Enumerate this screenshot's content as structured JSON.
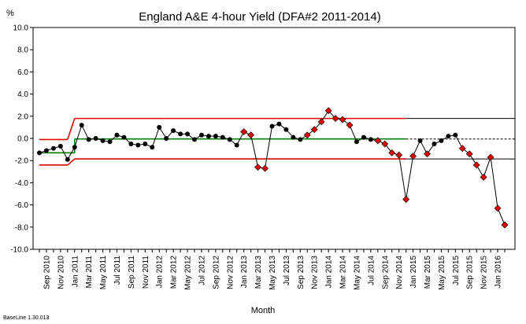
{
  "chart_data": {
    "type": "line",
    "title": "England A&E 4-hour Yield (DFA#2 2011-2014)",
    "ylabel": "%",
    "xlabel": "Month",
    "footer": "BaseLine 1.30.013",
    "ylim": [
      -10,
      10
    ],
    "yticks": [
      "10.0",
      "8.0",
      "6.0",
      "4.0",
      "2.0",
      "0.0",
      "-2.0",
      "-4.0",
      "-6.0",
      "-8.0",
      "-10.0"
    ],
    "yticks_values": [
      10,
      8,
      6,
      4,
      2,
      0,
      -2,
      -4,
      -6,
      -8,
      -10
    ],
    "xticks": [
      "Sep 2010",
      "Nov 2010",
      "Jan 2011",
      "Mar 2011",
      "May 2011",
      "Jul 2011",
      "Sep 2011",
      "Nov 2011",
      "Jan 2012",
      "Mar 2012",
      "May 2012",
      "Jul 2012",
      "Sep 2012",
      "Nov 2012",
      "Jan 2013",
      "Mar 2013",
      "May 2013",
      "Jul 2013",
      "Sep 2013",
      "Nov 2013",
      "Jan 2014",
      "Mar 2014",
      "May 2014",
      "Jul 2014",
      "Sep 2014",
      "Nov 2014",
      "Jan 2015",
      "Mar 2015",
      "May 2015",
      "Jul 2015",
      "Sep 2015",
      "Nov 2015",
      "Jan 2016"
    ],
    "x": [
      "Aug 2010",
      "Sep 2010",
      "Oct 2010",
      "Nov 2010",
      "Dec 2010",
      "Jan 2011",
      "Feb 2011",
      "Mar 2011",
      "Apr 2011",
      "May 2011",
      "Jun 2011",
      "Jul 2011",
      "Aug 2011",
      "Sep 2011",
      "Oct 2011",
      "Nov 2011",
      "Dec 2011",
      "Jan 2012",
      "Feb 2012",
      "Mar 2012",
      "Apr 2012",
      "May 2012",
      "Jun 2012",
      "Jul 2012",
      "Aug 2012",
      "Sep 2012",
      "Oct 2012",
      "Nov 2012",
      "Dec 2012",
      "Jan 2013",
      "Feb 2013",
      "Mar 2013",
      "Apr 2013",
      "May 2013",
      "Jun 2013",
      "Jul 2013",
      "Aug 2013",
      "Sep 2013",
      "Oct 2013",
      "Nov 2013",
      "Dec 2013",
      "Jan 2014",
      "Feb 2014",
      "Mar 2014",
      "Apr 2014",
      "May 2014",
      "Jun 2014",
      "Jul 2014",
      "Aug 2014",
      "Sep 2014",
      "Oct 2014",
      "Nov 2014",
      "Dec 2014",
      "Jan 2015",
      "Feb 2015",
      "Mar 2015",
      "Apr 2015",
      "May 2015",
      "Jun 2015",
      "Jul 2015",
      "Aug 2015",
      "Sep 2015",
      "Oct 2015",
      "Nov 2015",
      "Dec 2015",
      "Jan 2016",
      "Feb 2016"
    ],
    "series": [
      {
        "values": [
          -1.3,
          -1.1,
          -0.9,
          -0.7,
          -1.9,
          -0.8,
          1.2,
          -0.1,
          0.0,
          -0.2,
          -0.3,
          0.3,
          0.1,
          -0.5,
          -0.6,
          -0.5,
          -0.8,
          1.0,
          0.0,
          0.7,
          0.4,
          0.4,
          -0.1,
          0.3,
          0.2,
          0.2,
          0.1,
          -0.1,
          -0.6,
          0.6,
          0.3,
          -2.6,
          -2.7,
          1.1,
          1.3,
          0.8,
          0.1,
          -0.1,
          0.3,
          0.8,
          1.5,
          2.5,
          1.8,
          1.7,
          1.2,
          -0.3,
          0.1,
          -0.1,
          -0.2,
          -0.5,
          -1.3,
          -1.5,
          -5.5,
          -1.6,
          -0.2,
          -1.4,
          -0.5,
          -0.2,
          0.2,
          0.3,
          -0.9,
          -1.4,
          -2.4,
          -3.5,
          -1.7,
          -6.3,
          -7.8
        ],
        "red_points_from_index": 29,
        "red_points_exclude_indices": [
          33,
          34,
          35,
          36,
          37
        ]
      }
    ],
    "centerline": {
      "segments": [
        {
          "from": "Aug 2010",
          "to": "Jan 2011",
          "value": -1.3
        },
        {
          "from": "Jan 2011",
          "to": "Dec 2014",
          "value": -0.05
        },
        {
          "from": "Dec 2014",
          "to": "Feb 2016",
          "value": -0.05
        }
      ]
    },
    "limits": {
      "ucl": [
        {
          "from": "Aug 2010",
          "to": "Dec 2010",
          "value": -0.1
        },
        {
          "from": "Jan 2011",
          "to": "Dec 2014",
          "value": 1.8
        },
        {
          "from": "Dec 2014",
          "to": "Feb 2016",
          "value": 1.8
        }
      ],
      "lcl": [
        {
          "from": "Aug 2010",
          "to": "Dec 2010",
          "value": -2.4
        },
        {
          "from": "Jan 2011",
          "to": "Dec 2014",
          "value": -1.85
        },
        {
          "from": "Dec 2014",
          "to": "Feb 2016",
          "value": -1.85
        }
      ]
    },
    "colors": {
      "line": "#000000",
      "normal_point": "#000000",
      "signal_point": "#e00000",
      "centerline": "#008000",
      "limits": "#e00000",
      "projection": "#000000"
    },
    "grid": false,
    "legend": "none"
  }
}
